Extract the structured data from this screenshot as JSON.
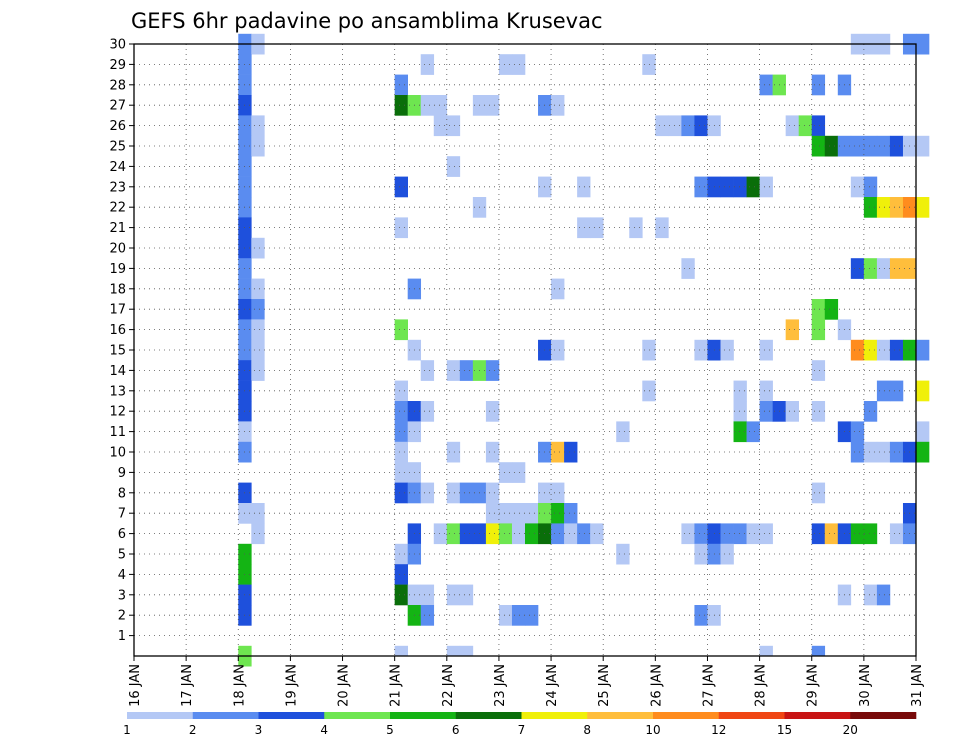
{
  "chart_data": {
    "type": "heatmap",
    "title": "GEFS 6hr padavine po ansamblima Krusevac",
    "x_labels": [
      "16 JAN",
      "17 JAN",
      "18 JAN",
      "19 JAN",
      "20 JAN",
      "21 JAN",
      "22 JAN",
      "23 JAN",
      "24 JAN",
      "25 JAN",
      "26 JAN",
      "27 JAN",
      "28 JAN",
      "29 JAN",
      "30 JAN",
      "31 JAN"
    ],
    "y_labels": [
      "1",
      "2",
      "3",
      "4",
      "5",
      "6",
      "7",
      "8",
      "9",
      "10",
      "11",
      "12",
      "13",
      "14",
      "15",
      "16",
      "17",
      "18",
      "19",
      "20",
      "21",
      "22",
      "23",
      "24",
      "25",
      "26",
      "27",
      "28",
      "29",
      "30"
    ],
    "x_range_days": [
      16,
      31
    ],
    "y_range": [
      0,
      30
    ],
    "time_step_hours": 6,
    "grid": "dotted",
    "legend": {
      "placement": "bottom",
      "bounds": [
        1,
        2,
        3,
        4,
        5,
        6,
        7,
        8,
        10,
        12,
        15,
        20
      ],
      "colors": [
        "#b4c8f5",
        "#5a8cf0",
        "#1e50dc",
        "#6ee650",
        "#14b414",
        "#0a6e0a",
        "#f0f00a",
        "#ffbe3c",
        "#ff8c1e",
        "#f04614",
        "#c81414",
        "#780a0a"
      ]
    },
    "cells_columns": [
      "member",
      "day",
      "hour",
      "mm"
    ],
    "cells": [
      [
        0,
        18,
        0,
        4
      ],
      [
        30,
        31,
        0,
        2
      ],
      [
        30,
        18,
        0,
        2
      ],
      [
        30,
        18,
        6,
        1
      ],
      [
        30,
        29,
        18,
        1
      ],
      [
        30,
        30,
        0,
        1
      ],
      [
        30,
        30,
        6,
        1
      ],
      [
        30,
        30,
        18,
        2
      ],
      [
        29,
        18,
        0,
        2
      ],
      [
        29,
        21,
        12,
        1
      ],
      [
        29,
        23,
        0,
        1
      ],
      [
        29,
        23,
        6,
        1
      ],
      [
        29,
        25,
        18,
        1
      ],
      [
        28,
        18,
        0,
        2
      ],
      [
        28,
        21,
        0,
        2
      ],
      [
        28,
        28,
        0,
        2
      ],
      [
        28,
        28,
        6,
        4
      ],
      [
        28,
        29,
        0,
        2
      ],
      [
        28,
        29,
        12,
        2
      ],
      [
        27,
        18,
        0,
        3
      ],
      [
        27,
        21,
        0,
        6
      ],
      [
        27,
        21,
        6,
        4
      ],
      [
        27,
        21,
        12,
        1
      ],
      [
        27,
        21,
        18,
        1
      ],
      [
        27,
        22,
        12,
        1
      ],
      [
        27,
        22,
        18,
        1
      ],
      [
        27,
        23,
        18,
        2
      ],
      [
        27,
        24,
        0,
        1
      ],
      [
        26,
        18,
        0,
        2
      ],
      [
        26,
        18,
        6,
        1
      ],
      [
        26,
        21,
        18,
        1
      ],
      [
        26,
        22,
        0,
        1
      ],
      [
        26,
        26,
        0,
        1
      ],
      [
        26,
        26,
        6,
        1
      ],
      [
        26,
        26,
        12,
        2
      ],
      [
        26,
        26,
        18,
        3
      ],
      [
        26,
        27,
        0,
        1
      ],
      [
        26,
        28,
        12,
        1
      ],
      [
        26,
        28,
        18,
        4
      ],
      [
        26,
        29,
        0,
        3
      ],
      [
        25,
        18,
        0,
        2
      ],
      [
        25,
        18,
        6,
        1
      ],
      [
        25,
        29,
        0,
        5
      ],
      [
        25,
        29,
        6,
        6
      ],
      [
        25,
        29,
        12,
        2
      ],
      [
        25,
        29,
        18,
        2
      ],
      [
        25,
        30,
        0,
        2
      ],
      [
        25,
        30,
        6,
        2
      ],
      [
        25,
        30,
        12,
        3
      ],
      [
        25,
        30,
        18,
        1
      ],
      [
        25,
        31,
        0,
        1
      ],
      [
        24,
        18,
        0,
        2
      ],
      [
        24,
        22,
        0,
        1
      ],
      [
        23,
        18,
        0,
        2
      ],
      [
        23,
        21,
        0,
        3
      ],
      [
        23,
        23,
        18,
        1
      ],
      [
        23,
        24,
        12,
        1
      ],
      [
        23,
        26,
        18,
        2
      ],
      [
        23,
        27,
        0,
        3
      ],
      [
        23,
        27,
        6,
        3
      ],
      [
        23,
        27,
        12,
        3
      ],
      [
        23,
        27,
        18,
        6
      ],
      [
        23,
        28,
        0,
        1
      ],
      [
        23,
        29,
        18,
        1
      ],
      [
        23,
        30,
        0,
        2
      ],
      [
        22,
        18,
        0,
        2
      ],
      [
        22,
        22,
        12,
        1
      ],
      [
        22,
        30,
        0,
        5
      ],
      [
        22,
        30,
        6,
        7
      ],
      [
        22,
        30,
        12,
        8
      ],
      [
        22,
        30,
        18,
        10
      ],
      [
        22,
        31,
        0,
        7
      ],
      [
        21,
        18,
        0,
        3
      ],
      [
        21,
        21,
        0,
        1
      ],
      [
        21,
        24,
        12,
        1
      ],
      [
        21,
        24,
        18,
        1
      ],
      [
        21,
        25,
        12,
        1
      ],
      [
        21,
        26,
        0,
        1
      ],
      [
        20,
        18,
        0,
        3
      ],
      [
        20,
        18,
        6,
        1
      ],
      [
        19,
        18,
        0,
        2
      ],
      [
        19,
        26,
        12,
        1
      ],
      [
        19,
        29,
        18,
        3
      ],
      [
        19,
        30,
        0,
        4
      ],
      [
        19,
        30,
        6,
        1
      ],
      [
        19,
        30,
        12,
        8
      ],
      [
        19,
        30,
        18,
        8
      ],
      [
        18,
        18,
        0,
        2
      ],
      [
        18,
        18,
        6,
        1
      ],
      [
        18,
        21,
        6,
        2
      ],
      [
        18,
        24,
        0,
        1
      ],
      [
        17,
        18,
        0,
        3
      ],
      [
        17,
        18,
        6,
        2
      ],
      [
        17,
        29,
        0,
        4
      ],
      [
        17,
        29,
        6,
        5
      ],
      [
        16,
        18,
        0,
        2
      ],
      [
        16,
        18,
        6,
        1
      ],
      [
        16,
        21,
        0,
        4
      ],
      [
        16,
        28,
        12,
        8
      ],
      [
        16,
        29,
        0,
        4
      ],
      [
        16,
        29,
        12,
        1
      ],
      [
        15,
        18,
        0,
        2
      ],
      [
        15,
        18,
        6,
        1
      ],
      [
        15,
        21,
        6,
        1
      ],
      [
        15,
        23,
        18,
        3
      ],
      [
        15,
        24,
        0,
        1
      ],
      [
        15,
        25,
        18,
        1
      ],
      [
        15,
        26,
        18,
        1
      ],
      [
        15,
        27,
        0,
        3
      ],
      [
        15,
        27,
        6,
        1
      ],
      [
        15,
        28,
        0,
        1
      ],
      [
        15,
        29,
        18,
        10
      ],
      [
        15,
        30,
        0,
        7
      ],
      [
        15,
        30,
        6,
        1
      ],
      [
        15,
        30,
        12,
        3
      ],
      [
        15,
        30,
        18,
        5
      ],
      [
        15,
        31,
        0,
        2
      ],
      [
        14,
        18,
        0,
        3
      ],
      [
        14,
        18,
        6,
        1
      ],
      [
        14,
        21,
        12,
        1
      ],
      [
        14,
        22,
        0,
        1
      ],
      [
        14,
        22,
        6,
        2
      ],
      [
        14,
        22,
        12,
        4
      ],
      [
        14,
        22,
        18,
        2
      ],
      [
        14,
        29,
        0,
        1
      ],
      [
        13,
        18,
        0,
        3
      ],
      [
        13,
        21,
        0,
        1
      ],
      [
        13,
        25,
        18,
        1
      ],
      [
        13,
        27,
        12,
        1
      ],
      [
        13,
        28,
        0,
        1
      ],
      [
        13,
        30,
        6,
        2
      ],
      [
        13,
        30,
        12,
        2
      ],
      [
        13,
        31,
        0,
        7
      ],
      [
        12,
        18,
        0,
        3
      ],
      [
        12,
        21,
        0,
        2
      ],
      [
        12,
        21,
        6,
        3
      ],
      [
        12,
        21,
        12,
        1
      ],
      [
        12,
        22,
        18,
        1
      ],
      [
        12,
        27,
        12,
        1
      ],
      [
        12,
        28,
        0,
        2
      ],
      [
        12,
        28,
        6,
        3
      ],
      [
        12,
        28,
        12,
        1
      ],
      [
        12,
        29,
        0,
        1
      ],
      [
        12,
        30,
        0,
        2
      ],
      [
        11,
        18,
        0,
        1
      ],
      [
        11,
        21,
        0,
        2
      ],
      [
        11,
        21,
        6,
        1
      ],
      [
        11,
        25,
        6,
        1
      ],
      [
        11,
        27,
        12,
        5
      ],
      [
        11,
        27,
        18,
        2
      ],
      [
        11,
        29,
        12,
        3
      ],
      [
        11,
        29,
        18,
        2
      ],
      [
        11,
        31,
        0,
        1
      ],
      [
        10,
        18,
        0,
        2
      ],
      [
        10,
        21,
        0,
        1
      ],
      [
        10,
        22,
        0,
        1
      ],
      [
        10,
        22,
        18,
        1
      ],
      [
        10,
        23,
        18,
        2
      ],
      [
        10,
        24,
        0,
        8
      ],
      [
        10,
        24,
        6,
        3
      ],
      [
        10,
        29,
        18,
        2
      ],
      [
        10,
        30,
        0,
        1
      ],
      [
        10,
        30,
        6,
        1
      ],
      [
        10,
        30,
        12,
        2
      ],
      [
        10,
        30,
        18,
        3
      ],
      [
        10,
        31,
        0,
        5
      ],
      [
        9,
        21,
        0,
        1
      ],
      [
        9,
        21,
        6,
        1
      ],
      [
        9,
        23,
        0,
        1
      ],
      [
        9,
        23,
        6,
        1
      ],
      [
        8,
        18,
        0,
        3
      ],
      [
        8,
        21,
        0,
        3
      ],
      [
        8,
        21,
        6,
        2
      ],
      [
        8,
        21,
        12,
        1
      ],
      [
        8,
        22,
        0,
        1
      ],
      [
        8,
        22,
        6,
        2
      ],
      [
        8,
        22,
        12,
        2
      ],
      [
        8,
        22,
        18,
        1
      ],
      [
        8,
        23,
        18,
        1
      ],
      [
        8,
        24,
        0,
        1
      ],
      [
        8,
        29,
        0,
        1
      ],
      [
        7,
        18,
        0,
        1
      ],
      [
        7,
        18,
        6,
        1
      ],
      [
        7,
        22,
        18,
        1
      ],
      [
        7,
        23,
        0,
        1
      ],
      [
        7,
        23,
        6,
        1
      ],
      [
        7,
        23,
        12,
        1
      ],
      [
        7,
        23,
        18,
        4
      ],
      [
        7,
        24,
        0,
        5
      ],
      [
        7,
        24,
        6,
        2
      ],
      [
        7,
        30,
        18,
        3
      ],
      [
        6,
        18,
        6,
        1
      ],
      [
        6,
        21,
        6,
        3
      ],
      [
        6,
        21,
        18,
        1
      ],
      [
        6,
        22,
        0,
        4
      ],
      [
        6,
        22,
        6,
        3
      ],
      [
        6,
        22,
        12,
        3
      ],
      [
        6,
        22,
        18,
        7
      ],
      [
        6,
        23,
        0,
        4
      ],
      [
        6,
        23,
        6,
        1
      ],
      [
        6,
        23,
        12,
        5
      ],
      [
        6,
        23,
        18,
        6
      ],
      [
        6,
        24,
        0,
        2
      ],
      [
        6,
        24,
        6,
        1
      ],
      [
        6,
        24,
        12,
        2
      ],
      [
        6,
        24,
        18,
        1
      ],
      [
        6,
        26,
        12,
        1
      ],
      [
        6,
        26,
        18,
        2
      ],
      [
        6,
        27,
        0,
        3
      ],
      [
        6,
        27,
        6,
        2
      ],
      [
        6,
        27,
        12,
        2
      ],
      [
        6,
        27,
        18,
        1
      ],
      [
        6,
        28,
        0,
        1
      ],
      [
        6,
        29,
        0,
        3
      ],
      [
        6,
        29,
        6,
        8
      ],
      [
        6,
        29,
        12,
        3
      ],
      [
        6,
        29,
        18,
        5
      ],
      [
        6,
        30,
        0,
        5
      ],
      [
        6,
        30,
        12,
        1
      ],
      [
        6,
        30,
        18,
        2
      ],
      [
        5,
        18,
        0,
        5
      ],
      [
        5,
        21,
        0,
        1
      ],
      [
        5,
        21,
        6,
        2
      ],
      [
        5,
        25,
        6,
        1
      ],
      [
        5,
        26,
        18,
        1
      ],
      [
        5,
        27,
        0,
        2
      ],
      [
        5,
        27,
        6,
        1
      ],
      [
        4,
        18,
        0,
        5
      ],
      [
        4,
        21,
        0,
        3
      ],
      [
        3,
        18,
        0,
        3
      ],
      [
        3,
        21,
        0,
        6
      ],
      [
        3,
        21,
        6,
        1
      ],
      [
        3,
        21,
        12,
        1
      ],
      [
        3,
        22,
        0,
        1
      ],
      [
        3,
        22,
        6,
        1
      ],
      [
        3,
        29,
        12,
        1
      ],
      [
        3,
        30,
        0,
        1
      ],
      [
        3,
        30,
        6,
        2
      ],
      [
        2,
        18,
        0,
        3
      ],
      [
        2,
        21,
        6,
        5
      ],
      [
        2,
        21,
        12,
        2
      ],
      [
        2,
        23,
        0,
        1
      ],
      [
        2,
        23,
        6,
        2
      ],
      [
        2,
        23,
        12,
        2
      ],
      [
        2,
        26,
        18,
        2
      ],
      [
        2,
        27,
        0,
        1
      ]
    ],
    "bottom_strip": [
      [
        21,
        0,
        1
      ],
      [
        22,
        0,
        1
      ],
      [
        22,
        6,
        1
      ],
      [
        28,
        0,
        1
      ],
      [
        29,
        0,
        2
      ]
    ]
  }
}
